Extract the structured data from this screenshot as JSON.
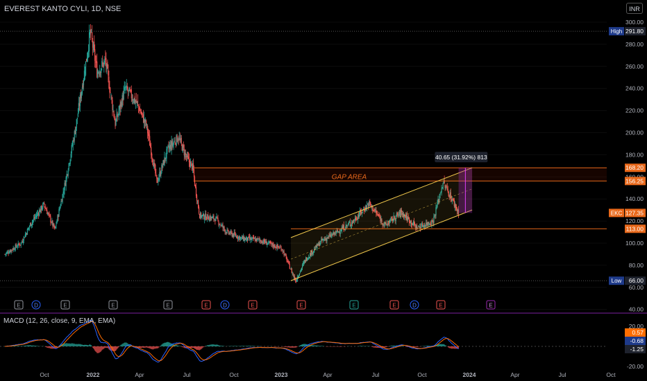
{
  "header": {
    "title": "EVEREST KANTO CYLI, 1D, NSE",
    "currency": "INR"
  },
  "price_axis": {
    "ticks": [
      "300.00",
      "280.00",
      "260.00",
      "240.00",
      "220.00",
      "200.00",
      "180.00",
      "160.00",
      "140.00",
      "120.00",
      "100.00",
      "80.00",
      "60.00",
      "40.00"
    ],
    "high_label": "High",
    "high_value": "291.80",
    "low_label": "Low",
    "low_value": "66.00",
    "last_symbol": "EKC",
    "last_value": "127.35",
    "levels": [
      "168.20",
      "156.25",
      "113.00"
    ]
  },
  "annotations": {
    "gap_area": "GAP AREA",
    "measure": "40.65 (31.92%) 813"
  },
  "events": [
    "E",
    "D",
    "E",
    "E",
    "E",
    "E",
    "D",
    "E",
    "E",
    "E",
    "E",
    "D",
    "E",
    "E"
  ],
  "macd": {
    "title": "MACD (12, 26, close, 9, EMA, EMA)",
    "ticks": [
      "20.00",
      "0.00",
      "-20.00"
    ],
    "values": [
      "0.57",
      "-0.68",
      "-1.25"
    ]
  },
  "time_axis": [
    "Oct",
    "2022",
    "Apr",
    "Jul",
    "Oct",
    "2023",
    "Apr",
    "Jul",
    "Oct",
    "2024",
    "Apr",
    "Jul",
    "Oct"
  ],
  "colors": {
    "up": "#26a69a",
    "down": "#ef5350",
    "channel": "#f2c94c",
    "level": "#e8681a",
    "macd_line": "#2962ff",
    "signal_line": "#ff6d00",
    "range_box": "#9c27b0"
  },
  "chart_data": {
    "type": "candlestick",
    "title": "EVEREST KANTO CYLI, 1D, NSE",
    "y_range": [
      40,
      300
    ],
    "x_range": [
      "2021-08",
      "2024-10"
    ],
    "price_path": [
      [
        "2021-08-01",
        90
      ],
      [
        "2021-09-01",
        100
      ],
      [
        "2021-09-20",
        118
      ],
      [
        "2021-10-15",
        135
      ],
      [
        "2021-11-05",
        112
      ],
      [
        "2021-11-25",
        155
      ],
      [
        "2021-12-15",
        205
      ],
      [
        "2022-01-05",
        268
      ],
      [
        "2022-01-12",
        291.8
      ],
      [
        "2022-01-25",
        255
      ],
      [
        "2022-02-10",
        265
      ],
      [
        "2022-03-01",
        208
      ],
      [
        "2022-03-20",
        240
      ],
      [
        "2022-04-10",
        228
      ],
      [
        "2022-04-30",
        206
      ],
      [
        "2022-05-20",
        155
      ],
      [
        "2022-06-10",
        185
      ],
      [
        "2022-06-30",
        196
      ],
      [
        "2022-07-15",
        178
      ],
      [
        "2022-07-28",
        168
      ],
      [
        "2022-08-01",
        152
      ],
      [
        "2022-08-10",
        125
      ],
      [
        "2022-09-10",
        122
      ],
      [
        "2022-10-01",
        110
      ],
      [
        "2022-11-01",
        104
      ],
      [
        "2022-12-01",
        103
      ],
      [
        "2023-01-15",
        95
      ],
      [
        "2023-02-10",
        66
      ],
      [
        "2023-03-01",
        85
      ],
      [
        "2023-04-01",
        102
      ],
      [
        "2023-05-01",
        110
      ],
      [
        "2023-06-01",
        120
      ],
      [
        "2023-07-01",
        136
      ],
      [
        "2023-08-01",
        116
      ],
      [
        "2023-09-01",
        128
      ],
      [
        "2023-10-01",
        114
      ],
      [
        "2023-11-01",
        120
      ],
      [
        "2023-11-20",
        155
      ],
      [
        "2023-12-05",
        142
      ],
      [
        "2023-12-20",
        127.35
      ]
    ],
    "levels": [
      168.2,
      156.25,
      113.0
    ],
    "high": 291.8,
    "low": 66.0,
    "last": 127.35,
    "channel": {
      "upper": [
        [
          "2023-02-01",
          105
        ],
        [
          "2024-01-15",
          168.2
        ]
      ],
      "lower": [
        [
          "2023-02-01",
          66
        ],
        [
          "2024-01-15",
          130
        ]
      ]
    },
    "measure": {
      "from": 127.35,
      "to": 168.2,
      "change": 40.65,
      "percent": 31.92,
      "bars": 813
    },
    "macd": {
      "params": "12, 26, close, 9, EMA, EMA",
      "y_range": [
        -30,
        30
      ],
      "last_histogram": 0.57,
      "last_macd": -0.68,
      "last_signal": -1.25
    }
  }
}
